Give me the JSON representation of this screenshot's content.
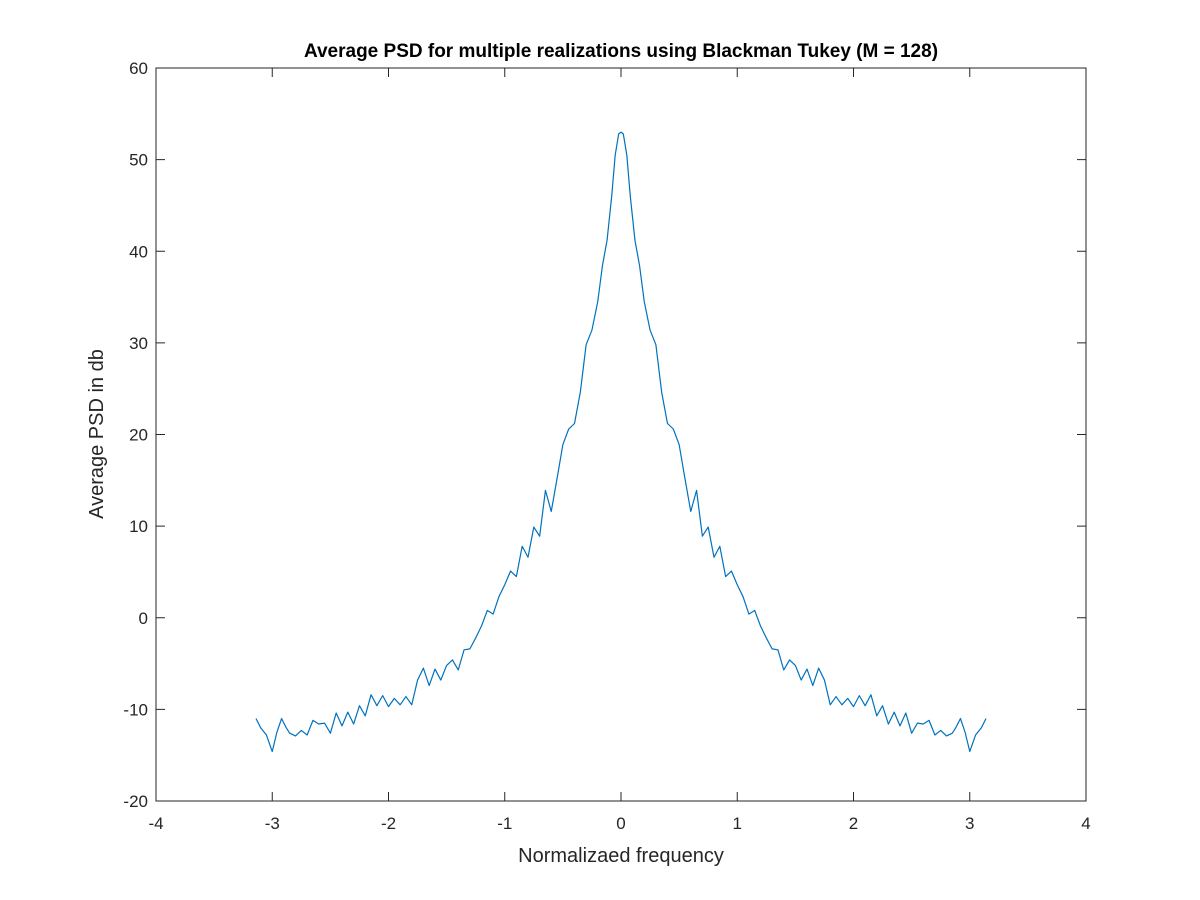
{
  "chart_data": {
    "type": "line",
    "title": "Average PSD for multiple realizations using Blackman Tukey (M = 128)",
    "xlabel": "Normalizaed frequency",
    "ylabel": "Average PSD in db",
    "xlim": [
      -4,
      4
    ],
    "ylim": [
      -20,
      60
    ],
    "xticks": [
      -4,
      -3,
      -2,
      -1,
      0,
      1,
      2,
      3,
      4
    ],
    "yticks": [
      -20,
      -10,
      0,
      10,
      20,
      30,
      40,
      50,
      60
    ],
    "xtick_labels": [
      "-4",
      "-3",
      "-2",
      "-1",
      "0",
      "1",
      "2",
      "3",
      "4"
    ],
    "ytick_labels": [
      "-20",
      "-10",
      "0",
      "10",
      "20",
      "30",
      "40",
      "50",
      "60"
    ],
    "grid": false,
    "line_color": "#0072BD",
    "series": [
      {
        "x": [
          -3.14,
          -3.1,
          -3.05,
          -3.0,
          -2.96,
          -2.92,
          -2.88,
          -2.85,
          -2.8,
          -2.75,
          -2.7,
          -2.65,
          -2.6,
          -2.55,
          -2.5,
          -2.45,
          -2.4,
          -2.35,
          -2.3,
          -2.25,
          -2.2,
          -2.15,
          -2.1,
          -2.05,
          -2.0,
          -1.95,
          -1.9,
          -1.85,
          -1.8,
          -1.75,
          -1.7,
          -1.65,
          -1.6,
          -1.55,
          -1.5,
          -1.45,
          -1.4,
          -1.35,
          -1.3,
          -1.25,
          -1.2,
          -1.15,
          -1.1,
          -1.05,
          -1.0,
          -0.95,
          -0.9,
          -0.85,
          -0.8,
          -0.75,
          -0.7,
          -0.65,
          -0.6,
          -0.55,
          -0.5,
          -0.45,
          -0.4,
          -0.35,
          -0.3,
          -0.25,
          -0.2,
          -0.16,
          -0.12,
          -0.08,
          -0.05,
          -0.02,
          0.0,
          0.02,
          0.05,
          0.08,
          0.12,
          0.16,
          0.2,
          0.25,
          0.3,
          0.35,
          0.4,
          0.45,
          0.5,
          0.55,
          0.6,
          0.65,
          0.7,
          0.75,
          0.8,
          0.85,
          0.9,
          0.95,
          1.0,
          1.05,
          1.1,
          1.15,
          1.2,
          1.25,
          1.3,
          1.35,
          1.4,
          1.45,
          1.5,
          1.55,
          1.6,
          1.65,
          1.7,
          1.75,
          1.8,
          1.85,
          1.9,
          1.95,
          2.0,
          2.05,
          2.1,
          2.15,
          2.2,
          2.25,
          2.3,
          2.35,
          2.4,
          2.45,
          2.5,
          2.55,
          2.6,
          2.65,
          2.7,
          2.75,
          2.8,
          2.85,
          2.88,
          2.92,
          2.96,
          3.0,
          3.05,
          3.1,
          3.14
        ],
        "y": [
          -11.0,
          -12.0,
          -12.8,
          -14.6,
          -12.5,
          -11.0,
          -12.0,
          -12.6,
          -12.9,
          -12.3,
          -12.8,
          -11.2,
          -11.6,
          -11.5,
          -12.6,
          -10.4,
          -11.8,
          -10.3,
          -11.6,
          -9.6,
          -10.7,
          -8.4,
          -9.6,
          -8.5,
          -9.7,
          -8.8,
          -9.5,
          -8.6,
          -9.5,
          -6.8,
          -5.5,
          -7.4,
          -5.6,
          -6.8,
          -5.2,
          -4.6,
          -5.7,
          -3.5,
          -3.4,
          -2.2,
          -0.9,
          0.8,
          0.4,
          2.3,
          3.6,
          5.1,
          4.5,
          7.8,
          6.6,
          9.9,
          8.9,
          13.9,
          11.6,
          15.2,
          18.9,
          20.6,
          21.2,
          24.6,
          29.8,
          31.4,
          34.5,
          38.4,
          41.2,
          46.0,
          50.5,
          52.8,
          53.0,
          52.8,
          50.5,
          46.0,
          41.2,
          38.4,
          34.5,
          31.4,
          29.8,
          24.6,
          21.2,
          20.6,
          18.9,
          15.2,
          11.6,
          13.9,
          8.9,
          9.9,
          6.6,
          7.8,
          4.5,
          5.1,
          3.6,
          2.3,
          0.4,
          0.8,
          -0.9,
          -2.2,
          -3.4,
          -3.5,
          -5.7,
          -4.6,
          -5.2,
          -6.8,
          -5.6,
          -7.4,
          -5.5,
          -6.8,
          -9.5,
          -8.6,
          -9.5,
          -8.8,
          -9.7,
          -8.5,
          -9.6,
          -8.4,
          -10.7,
          -9.6,
          -11.6,
          -10.3,
          -11.8,
          -10.4,
          -12.6,
          -11.5,
          -11.6,
          -11.2,
          -12.8,
          -12.3,
          -12.9,
          -12.6,
          -12.0,
          -11.0,
          -12.5,
          -14.6,
          -12.8,
          -12.0,
          -11.0
        ]
      }
    ]
  }
}
